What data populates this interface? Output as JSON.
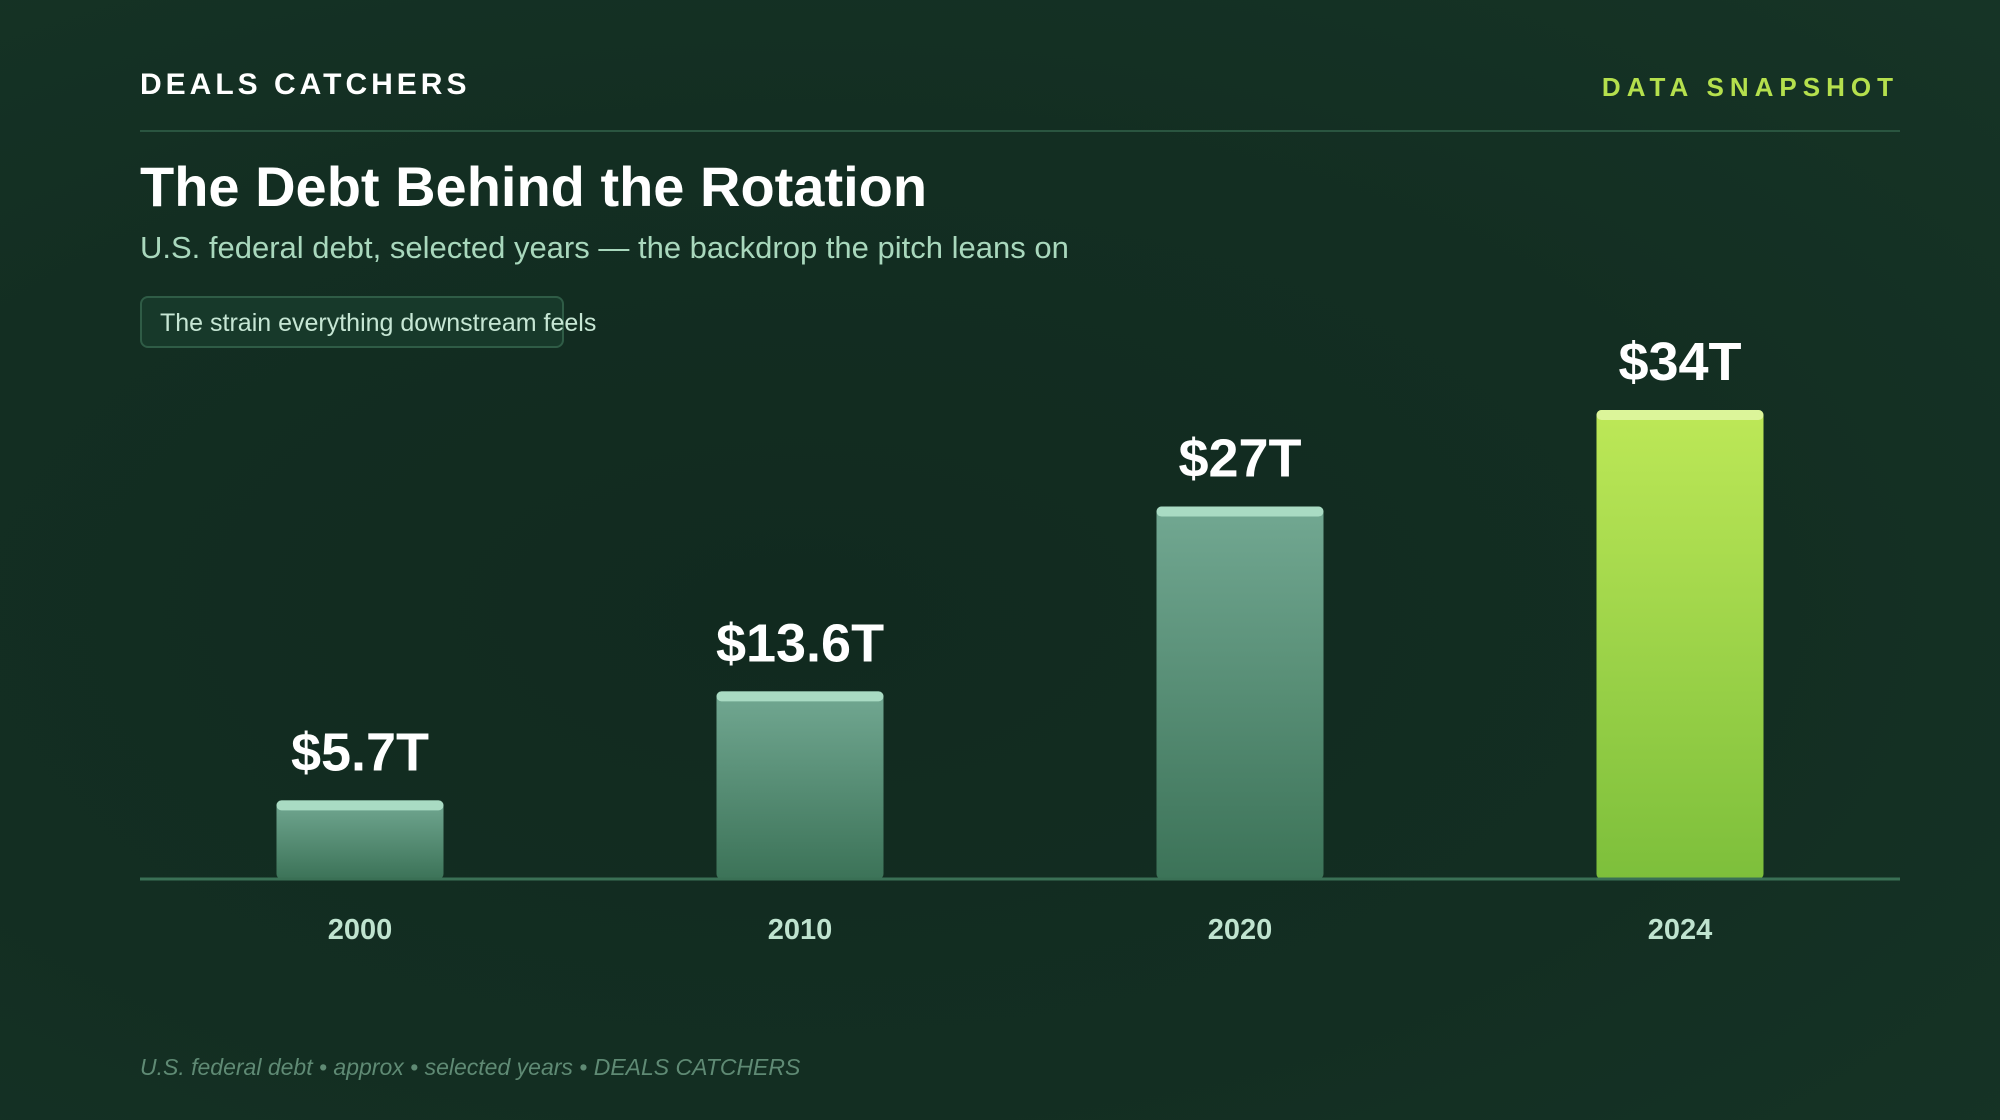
{
  "header": {
    "brand": "DEALS CATCHERS",
    "tag": "DATA SNAPSHOT"
  },
  "title": "The Debt Behind the Rotation",
  "subtitle": "U.S. federal debt, selected years — the backdrop the pitch leans on",
  "callout": "The strain everything downstream feels",
  "footer": "U.S. federal debt • approx • selected years • DEALS CATCHERS",
  "colors": {
    "accent": "#b5e04d",
    "bar_default_top": "#72a892",
    "bar_default_bottom": "#3c7358",
    "bar_cap_default": "#a9dbc3",
    "bar_highlight_top": "#bde857",
    "bar_highlight_bottom": "#7dbf3b",
    "bar_cap_highlight": "#dcf59a",
    "axis_label": "#bfe3cf",
    "axis_line": "#3a7055"
  },
  "chart_data": {
    "type": "bar",
    "title": "The Debt Behind the Rotation",
    "xlabel": "",
    "ylabel": "",
    "unit": "trillion USD",
    "categories": [
      "2000",
      "2010",
      "2020",
      "2024"
    ],
    "values": [
      5.7,
      13.6,
      27,
      34
    ],
    "value_labels": [
      "$5.7T",
      "$13.6T",
      "$27T",
      "$34T"
    ],
    "highlight_index": 3,
    "ylim": [
      0,
      34
    ],
    "grid": false,
    "legend": "none"
  }
}
